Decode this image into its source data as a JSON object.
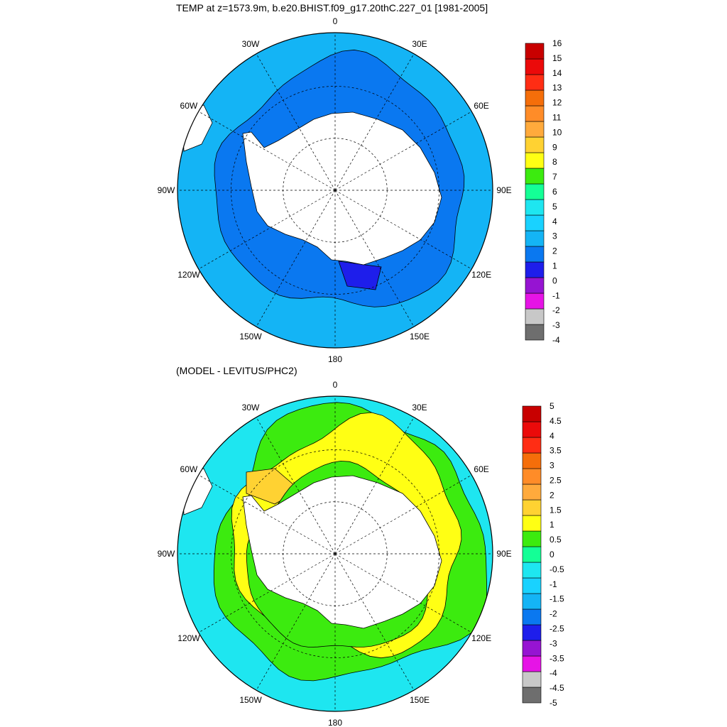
{
  "titles": {
    "top": "TEMP at z=1573.9m, b.e20.BHIST.f09_g17.20thC.227_01 [1981-2005]",
    "bottom": "(MODEL - LEVITUS/PHC2)"
  },
  "longitude_labels": [
    "0",
    "30E",
    "60E",
    "90E",
    "120E",
    "150E",
    "180",
    "150W",
    "120W",
    "90W",
    "60W",
    "30W"
  ],
  "colorbar_top": {
    "colors": [
      "#6e6e6e",
      "#c8c8c8",
      "#e614e6",
      "#9614d2",
      "#1e1eeb",
      "#0a78f0",
      "#14b4f5",
      "#19d2ff",
      "#1ee6f0",
      "#14ff96",
      "#3ceb0f",
      "#ffff14",
      "#ffd232",
      "#ffaa3c",
      "#ff8c28",
      "#f56e0a",
      "#ff2d14",
      "#eb0a0a",
      "#c80000"
    ],
    "labels": [
      "16",
      "15",
      "14",
      "13",
      "12",
      "11",
      "10",
      "9",
      "8",
      "7",
      "6",
      "5",
      "4",
      "3",
      "2",
      "1",
      "0",
      "-1",
      "-2",
      "-3",
      "-4"
    ]
  },
  "colorbar_bottom": {
    "colors": [
      "#6e6e6e",
      "#c8c8c8",
      "#e614e6",
      "#9614d2",
      "#1e1eeb",
      "#0a78f0",
      "#14b4f5",
      "#19d2ff",
      "#1ee6f0",
      "#14ff96",
      "#3ceb0f",
      "#ffff14",
      "#ffd232",
      "#ffaa3c",
      "#ff8c28",
      "#f56e0a",
      "#ff2d14",
      "#eb0a0a",
      "#c80000"
    ],
    "labels": [
      "5",
      "4.5",
      "4",
      "3.5",
      "3",
      "2.5",
      "2",
      "1.5",
      "1",
      "0.5",
      "0",
      "-0.5",
      "-1",
      "-1.5",
      "-2",
      "-2.5",
      "-3",
      "-3.5",
      "-4",
      "-4.5",
      "-5"
    ]
  },
  "fill_colors": {
    "top_outer": "#14b4f5",
    "top_inner": "#0a78f0",
    "top_cold": "#1e1eeb",
    "bottom_outer": "#1ee6f0",
    "bottom_mid": "#3ceb0f",
    "bottom_warm": "#ffff14",
    "bottom_warmer": "#ffd232",
    "bottom_green": "#14ff96",
    "land": "#ffffff"
  }
}
